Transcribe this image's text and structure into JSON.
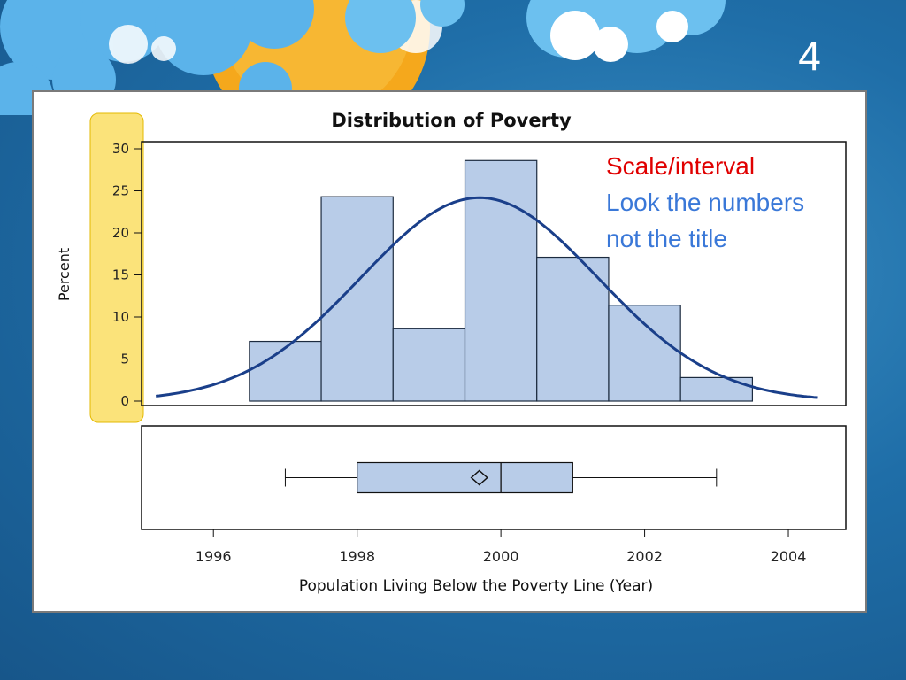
{
  "slide": {
    "number": "4",
    "annotations": [
      "Scale/interval",
      "Look the numbers",
      "not the title"
    ]
  },
  "colors": {
    "background": "#1f6ea8",
    "bar_fill": "#b8cce8",
    "bar_stroke": "#1c2b3f",
    "curve": "#1a3f8a",
    "axis_highlight": "#fbe37a",
    "annotation_red": "#e00000",
    "annotation_blue": "#3a78d8"
  },
  "chart_data": {
    "type": "bar",
    "title": "Distribution of Poverty",
    "xlabel": "Population Living Below the Poverty Line (Year)",
    "ylabel": "Percent",
    "xlim": [
      1995,
      2004.8
    ],
    "ylim": [
      0,
      30
    ],
    "x_ticks": [
      1996,
      1998,
      2000,
      2002,
      2004
    ],
    "y_ticks": [
      0,
      5,
      10,
      15,
      20,
      25,
      30
    ],
    "bin_width": 1,
    "bin_centers": [
      1997,
      1998,
      1999,
      2000,
      2001,
      2002,
      2003
    ],
    "values": [
      7.1,
      24.3,
      8.6,
      28.6,
      17.1,
      11.4,
      2.8
    ],
    "normal_curve": {
      "mean": 1999.7,
      "sd": 1.65
    },
    "boxplot": {
      "min": 1997,
      "q1": 1998,
      "median": 2000,
      "mean": 1999.7,
      "q3": 2001,
      "max": 2003
    }
  }
}
